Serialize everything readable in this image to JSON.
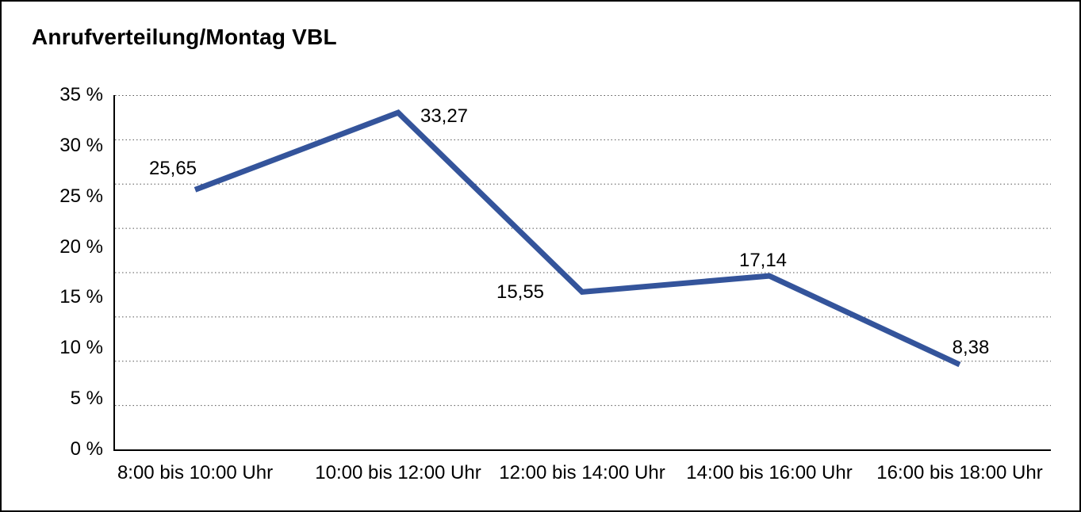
{
  "chart_data": {
    "type": "line",
    "title": "Anrufverteilung/Montag VBL",
    "categories": [
      "8:00 bis 10:00 Uhr",
      "10:00 bis 12:00 Uhr",
      "12:00 bis 14:00 Uhr",
      "14:00 bis 16:00 Uhr",
      "16:00 bis 18:00 Uhr"
    ],
    "values": [
      25.65,
      33.27,
      15.55,
      17.14,
      8.38
    ],
    "point_labels": [
      "25,65",
      "33,27",
      "15,55",
      "17,14",
      "8,38"
    ],
    "ylim": [
      0,
      35
    ],
    "ytick_labels": [
      "35 %",
      "30 %",
      "25 %",
      "20 %",
      "15 %",
      "10 %",
      "5 %",
      "0 %"
    ],
    "xlabel": "",
    "ylabel": "",
    "legend": "none",
    "grid": "horizontal-dotted",
    "line_color": "#34549B",
    "grid_color": "#555555",
    "axis_color": "#000000",
    "text_color": "#000000",
    "background_color": "#FFFFFF"
  }
}
